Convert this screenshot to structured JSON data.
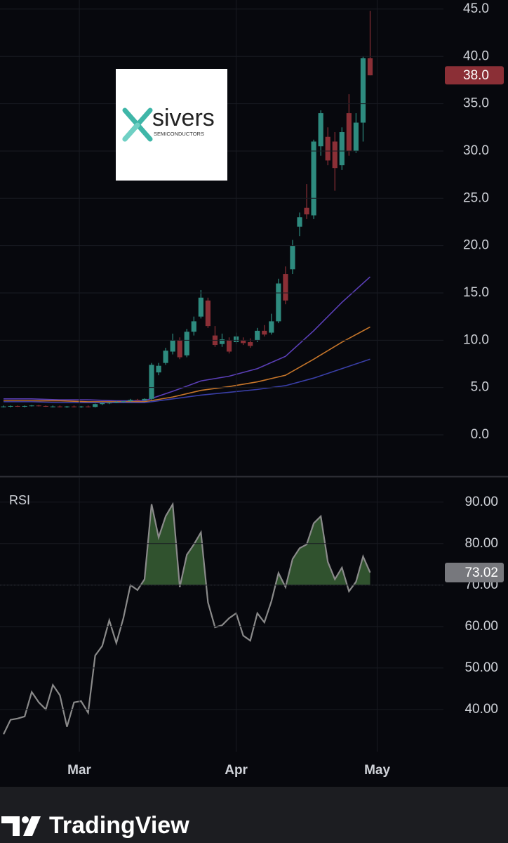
{
  "chart_data": [
    {
      "type": "candlestick",
      "xlim": [
        -0.5,
        62.4
      ],
      "ylim": [
        -4.38,
        45.96
      ],
      "yticks": [
        {
          "value": 0,
          "label": "0.0"
        },
        {
          "value": 5,
          "label": "5.0"
        },
        {
          "value": 10,
          "label": "10.0"
        },
        {
          "value": 15,
          "label": "15.0"
        },
        {
          "value": 20,
          "label": "20.0"
        },
        {
          "value": 25,
          "label": "25.0"
        },
        {
          "value": 30,
          "label": "30.0"
        },
        {
          "value": 35,
          "label": "35.0"
        },
        {
          "value": 40,
          "label": "40.0"
        },
        {
          "value": 45,
          "label": "45.0"
        }
      ],
      "grid": true,
      "up_color": "#2e8b7f",
      "down_color": "#8b2f36",
      "open": [
        3.0,
        3.0,
        3.05,
        3.0,
        3.05,
        3.1,
        3.05,
        3.0,
        3.0,
        2.95,
        3.0,
        2.95,
        3.0,
        2.95,
        3.25,
        3.35,
        3.4,
        3.5,
        3.55,
        3.7,
        3.65,
        3.8,
        6.6,
        7.6,
        8.8,
        10.0,
        8.4,
        10.9,
        12.5,
        14.2,
        10.5,
        9.6,
        10.0,
        9.8,
        10.0,
        9.8,
        10.0,
        11.0,
        10.8,
        12.0,
        17.0,
        17.5,
        22.0,
        24.0,
        23.2,
        30.5,
        31.5,
        31.0,
        28.5,
        34.0,
        30.0,
        33.0,
        39.8
      ],
      "high": [
        3.1,
        3.1,
        3.1,
        3.1,
        3.15,
        3.15,
        3.1,
        3.1,
        3.1,
        3.05,
        3.1,
        3.05,
        3.1,
        3.3,
        3.4,
        3.45,
        3.55,
        3.6,
        3.8,
        3.8,
        3.85,
        7.6,
        7.6,
        9.2,
        10.7,
        10.3,
        11.2,
        12.5,
        15.3,
        14.5,
        11.5,
        10.7,
        10.3,
        10.8,
        10.3,
        10.2,
        11.3,
        11.6,
        12.8,
        16.5,
        17.8,
        20.6,
        23.5,
        26.5,
        31.2,
        34.3,
        32.5,
        32.0,
        32.5,
        36.0,
        34.0,
        40.0,
        44.8
      ],
      "low": [
        2.9,
        2.9,
        2.95,
        2.9,
        3.0,
        3.0,
        2.95,
        2.9,
        2.9,
        2.85,
        2.9,
        2.85,
        2.9,
        2.9,
        3.15,
        3.25,
        3.35,
        3.4,
        3.5,
        3.6,
        3.6,
        3.7,
        6.3,
        7.4,
        8.5,
        8.0,
        8.2,
        10.5,
        12.3,
        11.3,
        9.3,
        9.3,
        8.6,
        9.6,
        9.5,
        9.2,
        9.8,
        10.4,
        10.6,
        11.8,
        13.8,
        17.0,
        21.0,
        22.8,
        22.8,
        29.5,
        28.5,
        25.8,
        28.0,
        29.5,
        29.8,
        31.0,
        38.0
      ],
      "close": [
        3.0,
        3.05,
        3.0,
        3.05,
        3.1,
        3.05,
        3.0,
        3.0,
        2.95,
        3.0,
        2.95,
        3.0,
        2.95,
        3.25,
        3.35,
        3.4,
        3.5,
        3.55,
        3.7,
        3.65,
        3.8,
        7.4,
        7.3,
        8.9,
        10.0,
        8.2,
        10.9,
        12.0,
        14.5,
        11.5,
        9.5,
        10.1,
        8.8,
        10.4,
        9.7,
        9.4,
        11.0,
        10.6,
        12.0,
        16.0,
        14.2,
        20.0,
        23.0,
        23.3,
        31.0,
        34.0,
        29.0,
        28.2,
        32.0,
        30.0,
        33.0,
        39.8,
        38.0
      ],
      "moving_averages": [
        {
          "color": "#5b3fb8",
          "x": [
            0,
            4,
            8,
            12,
            16,
            20,
            24,
            28,
            32,
            36,
            40,
            44,
            48,
            52
          ],
          "values": [
            3.8,
            3.8,
            3.7,
            3.7,
            3.6,
            3.6,
            4.6,
            5.7,
            6.2,
            7.0,
            8.3,
            11.0,
            14.0,
            16.7
          ]
        },
        {
          "color": "#c7762a",
          "x": [
            0,
            4,
            8,
            12,
            16,
            20,
            24,
            28,
            32,
            36,
            40,
            44,
            48,
            52
          ],
          "values": [
            3.6,
            3.6,
            3.6,
            3.5,
            3.5,
            3.5,
            4.0,
            4.7,
            5.1,
            5.6,
            6.3,
            8.0,
            9.8,
            11.4
          ]
        },
        {
          "color": "#3a3fa8",
          "x": [
            0,
            4,
            8,
            12,
            16,
            20,
            24,
            28,
            32,
            36,
            40,
            44,
            48,
            52
          ],
          "values": [
            3.5,
            3.5,
            3.4,
            3.4,
            3.4,
            3.4,
            3.8,
            4.2,
            4.5,
            4.8,
            5.2,
            6.0,
            7.0,
            8.0
          ]
        }
      ],
      "last_price": {
        "value": 38.0,
        "label": "38.0"
      }
    },
    {
      "type": "line",
      "title": "RSI",
      "values": [
        34,
        37.5,
        37.8,
        38.3,
        44.2,
        41.7,
        40,
        45.9,
        43.4,
        35.8,
        41.7,
        42,
        39.2,
        53,
        55.3,
        61.5,
        56,
        62,
        70,
        68.8,
        71.4,
        89.5,
        81.5,
        86.6,
        89.5,
        69.5,
        77.3,
        79.8,
        82.7,
        65.8,
        59.8,
        60.3,
        62,
        63.2,
        57.8,
        56.6,
        63.2,
        61,
        66.1,
        72.9,
        69.5,
        76.3,
        78.9,
        79.8,
        84.9,
        86.6,
        75.6,
        71.4,
        74.2,
        68.5,
        70.8,
        76.9,
        73.02
      ],
      "color": "#8a8a8a",
      "fill_color": "#3f6b3a",
      "overbought": 70,
      "xlim": [
        -0.5,
        62.4
      ],
      "ylim": [
        29.8,
        95.9
      ],
      "yticks": [
        {
          "value": 40,
          "label": "40.00"
        },
        {
          "value": 50,
          "label": "50.00"
        },
        {
          "value": 60,
          "label": "60.00"
        },
        {
          "value": 70,
          "label": "70.00"
        },
        {
          "value": 80,
          "label": "80.00"
        },
        {
          "value": 90,
          "label": "90.00"
        }
      ],
      "xticks": [
        {
          "value": 10.75,
          "label": "Mar"
        },
        {
          "value": 33,
          "label": "Apr"
        },
        {
          "value": 53,
          "label": "May"
        }
      ],
      "grid": true,
      "last_value": {
        "value": 73.02,
        "label": "73.02"
      }
    }
  ],
  "logo": {
    "name": "sivers",
    "tagline": "SEMICONDUCTORS"
  },
  "footer": {
    "brand": "TradingView"
  }
}
